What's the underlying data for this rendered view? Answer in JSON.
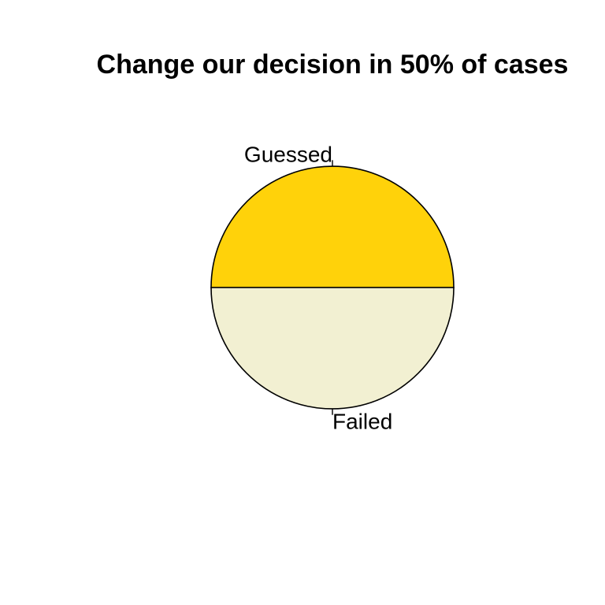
{
  "chart_data": {
    "type": "pie",
    "title": "Change our decision in 50% of cases",
    "slices": [
      {
        "label": "Guessed",
        "value": 50,
        "color": "#FFD20A"
      },
      {
        "label": "Failed",
        "value": 50,
        "color": "#F2F0D2"
      }
    ],
    "start_angle_deg": 0,
    "direction": "counterclockwise",
    "border_color": "#000000"
  }
}
